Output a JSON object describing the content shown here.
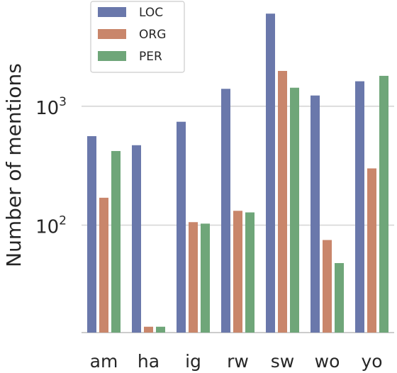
{
  "chart_data": {
    "type": "bar",
    "categories": [
      "am",
      "ha",
      "ig",
      "rw",
      "sw",
      "wo",
      "yo"
    ],
    "series": [
      {
        "name": "LOC",
        "color": "#6a78ab",
        "values": [
          560,
          470,
          740,
          1400,
          6000,
          1230,
          1620
        ]
      },
      {
        "name": "ORG",
        "color": "#c9866b",
        "values": [
          170,
          14,
          106,
          132,
          1980,
          75,
          300
        ]
      },
      {
        "name": "PER",
        "color": "#6fa679",
        "values": [
          420,
          14,
          103,
          128,
          1430,
          48,
          1800
        ]
      }
    ],
    "ylabel": "Number of mentions",
    "yscale": "log",
    "ylim": [
      12.5,
      7000
    ],
    "yticks": [
      {
        "base": "10",
        "exp": "2",
        "value": 100
      },
      {
        "base": "10",
        "exp": "3",
        "value": 1000
      }
    ],
    "grid": true,
    "legend_position": "top-left"
  }
}
